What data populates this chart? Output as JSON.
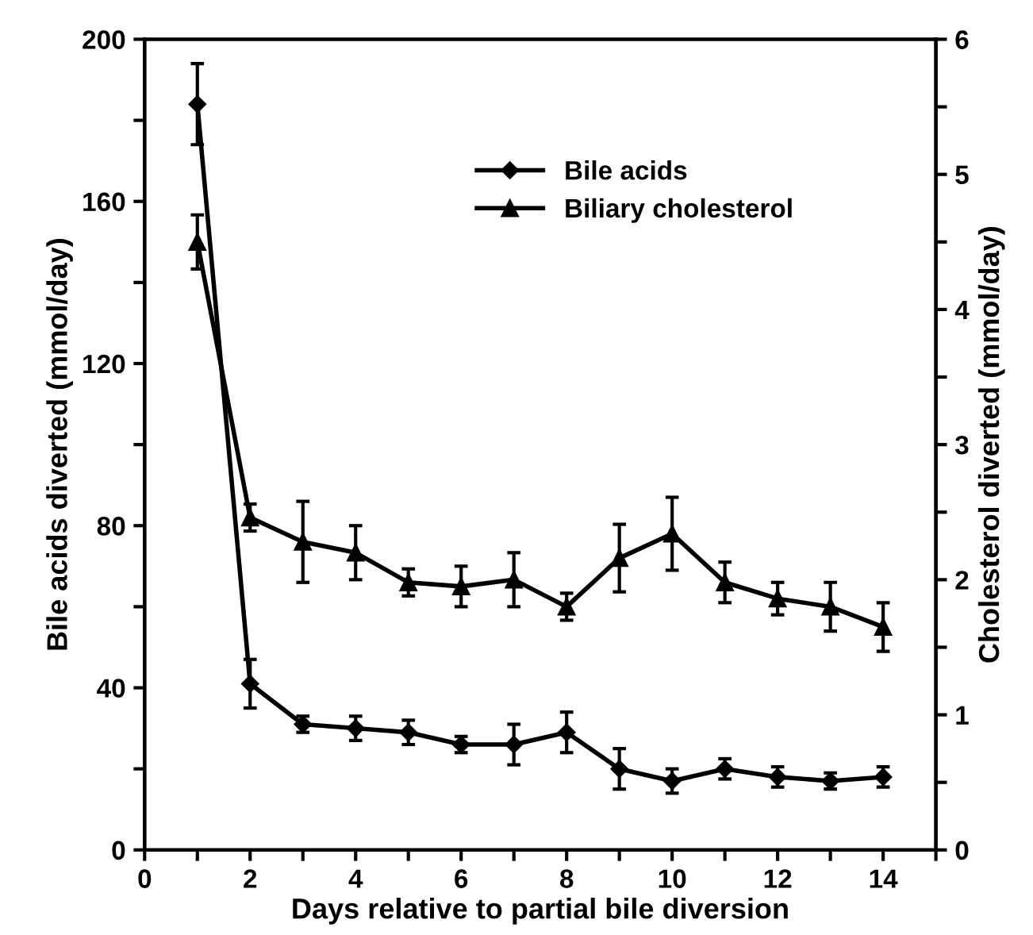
{
  "chart_data": {
    "type": "line",
    "xlabel": "Days relative to partial bile diversion",
    "ylabel": "Bile acids diverted (mmol/day)",
    "y2label": "Cholesterol diverted (mmol/day)",
    "x": [
      1,
      2,
      3,
      4,
      5,
      6,
      7,
      8,
      9,
      10,
      11,
      12,
      13,
      14
    ],
    "series": [
      {
        "name": "Bile acids",
        "color": "#000000",
        "marker": "diamond",
        "values": [
          184,
          41,
          31,
          30,
          29,
          26,
          26,
          29,
          20,
          17,
          20,
          18,
          17,
          18
        ],
        "errors": [
          10,
          6,
          2,
          3,
          3,
          2,
          5,
          5,
          5,
          3,
          2.5,
          2.5,
          2,
          2.5
        ]
      },
      {
        "name": "Biliary cholesterol",
        "color": "#000000",
        "marker": "triangle",
        "axis": "y2",
        "values": [
          4.5,
          2.46,
          2.28,
          2.2,
          1.98,
          1.95,
          2.0,
          1.8,
          2.16,
          2.34,
          1.98,
          1.86,
          1.8,
          1.65
        ],
        "errors": [
          0.2,
          0.1,
          0.3,
          0.2,
          0.1,
          0.15,
          0.2,
          0.1,
          0.25,
          0.27,
          0.15,
          0.12,
          0.18,
          0.18
        ]
      }
    ],
    "xlim": [
      0,
      15
    ],
    "xticks": [
      0,
      {
        "value": 1,
        "label": null
      },
      2,
      {
        "value": 3,
        "label": null
      },
      4,
      {
        "value": 5,
        "label": null
      },
      6,
      {
        "value": 7,
        "label": null
      },
      8,
      {
        "value": 9,
        "label": null
      },
      10,
      {
        "value": 11,
        "label": null
      },
      12,
      {
        "value": 13,
        "label": null
      },
      14,
      {
        "value": 15,
        "label": null
      }
    ],
    "ylim": [
      0,
      200
    ],
    "yticks": [
      0,
      {
        "value": 20,
        "label": null
      },
      40,
      {
        "value": 60,
        "label": null
      },
      80,
      {
        "value": 100,
        "label": null
      },
      120,
      {
        "value": 140,
        "label": null
      },
      160,
      {
        "value": 180,
        "label": null
      },
      200
    ],
    "y2lim": [
      0,
      6
    ],
    "y2ticks": [
      0,
      {
        "value": 0.5,
        "label": null
      },
      1,
      {
        "value": 1.5,
        "label": null
      },
      2,
      {
        "value": 2.5,
        "label": null
      },
      3,
      {
        "value": 3.5,
        "label": null
      },
      4,
      {
        "value": 4.5,
        "label": null
      },
      5,
      {
        "value": 5.5,
        "label": null
      },
      6
    ],
    "legend": "top right",
    "grid": false,
    "line_style": "solid"
  }
}
